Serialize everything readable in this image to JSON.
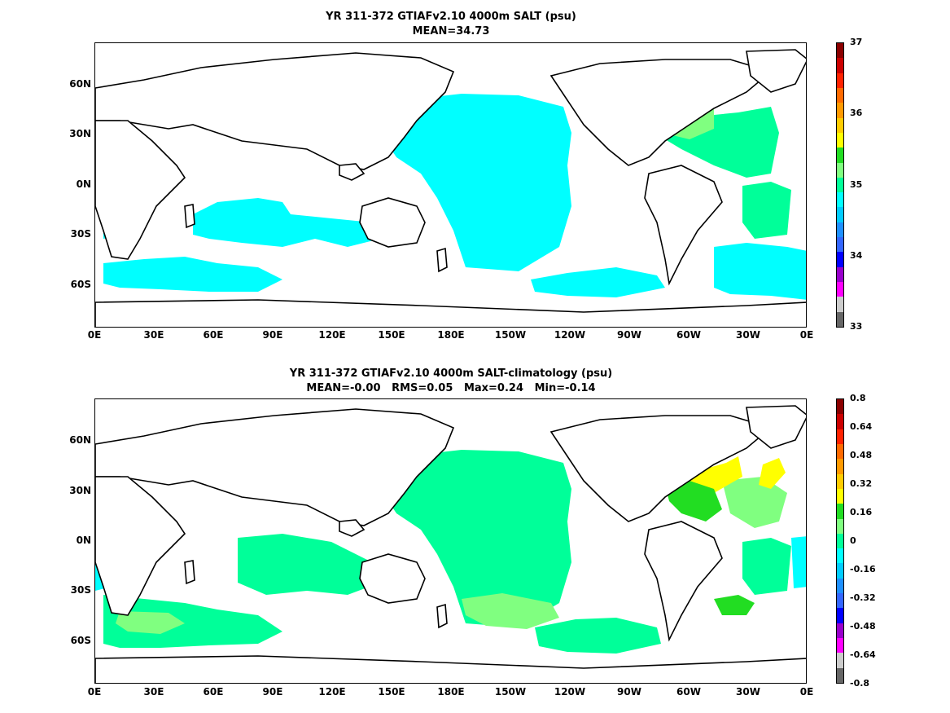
{
  "panels": [
    {
      "title_line1": "YR 311-372 GTIAFv2.10 4000m SALT (psu)",
      "title_line2": "MEAN=34.73",
      "colorbar_labels": [
        "37",
        "36",
        "35",
        "34",
        "33"
      ],
      "colorbar_colors": [
        "#8b0000",
        "#cc0000",
        "#ff2200",
        "#ff6a00",
        "#ff9a00",
        "#ffcc00",
        "#ffff00",
        "#22dd22",
        "#80ff80",
        "#00ff99",
        "#00ffff",
        "#00ccff",
        "#1e90ff",
        "#3366ff",
        "#0000ff",
        "#9900cc",
        "#ff00ff",
        "#cccccc",
        "#666666"
      ]
    },
    {
      "title_line1": "YR 311-372 GTIAFv2.10 4000m SALT-climatology (psu)",
      "title_line2": "MEAN=-0.00   RMS=0.05   Max=0.24   Min=-0.14",
      "colorbar_labels": [
        "0.8",
        "0.64",
        "0.48",
        "0.32",
        "0.16",
        "0",
        "-0.16",
        "-0.32",
        "-0.48",
        "-0.64",
        "-0.8"
      ],
      "colorbar_colors": [
        "#8b0000",
        "#cc0000",
        "#ff2200",
        "#ff6a00",
        "#ff9a00",
        "#ffcc00",
        "#ffff00",
        "#22dd22",
        "#80ff80",
        "#00ff99",
        "#00ffff",
        "#00ccff",
        "#1e90ff",
        "#3366ff",
        "#0000ff",
        "#9900cc",
        "#ff00ff",
        "#cccccc",
        "#666666"
      ]
    }
  ],
  "axes": {
    "y_ticks": [
      "60N",
      "30N",
      "0N",
      "30S",
      "60S"
    ],
    "x_ticks": [
      "0E",
      "30E",
      "60E",
      "90E",
      "120E",
      "150E",
      "180E",
      "150W",
      "120W",
      "90W",
      "60W",
      "30W",
      "0E"
    ]
  },
  "fill_colors": {
    "panel1_main": "#00ffff",
    "panel1_atlantic": "#00ff99",
    "panel1_atlantic_high": "#80ff80",
    "panel2_main": "#00ff99",
    "panel2_light": "#80ff80",
    "panel2_green": "#22dd22",
    "panel2_yellow": "#ffff00",
    "panel2_cyan": "#00ffff"
  }
}
